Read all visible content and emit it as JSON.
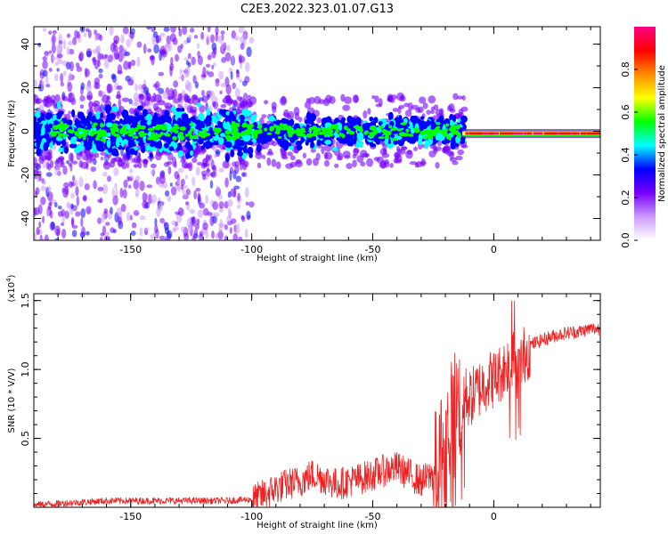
{
  "title": "C2E3.2022.323.01.07.G13",
  "chart_data": [
    {
      "type": "heatmap",
      "xlabel": "Height of straight line (km)",
      "ylabel": "Frequency (Hz)",
      "xlim": [
        -190,
        44
      ],
      "ylim": [
        -50,
        48
      ],
      "xticks": [
        -150,
        -100,
        -50,
        0
      ],
      "yticks": [
        -40,
        -20,
        0,
        20,
        40
      ],
      "colorbar": {
        "label": "Normalized spectral amplitude",
        "range": [
          0,
          1
        ],
        "ticks": [
          "0.0",
          "0.2",
          "0.4",
          "0.6",
          "0.8"
        ],
        "colors": [
          "#ffffff",
          "#cc99ff",
          "#7700ff",
          "#0000ff",
          "#00ffff",
          "#00ff00",
          "#ffff00",
          "#ff8800",
          "#ff0000",
          "#ff0088"
        ]
      },
      "description_of_content": "broad noisy spectrum at negative heights (-190 to -105 km) spread over all frequencies; concentrated band near 0 Hz from -190 to -13 km with blue/cyan/green peaks; narrow strong red line at about -1 Hz from -13 to 44 km"
    },
    {
      "type": "line",
      "xlabel": "Height of straight line (km)",
      "ylabel": "SNR (10 * V/V)",
      "scale_label": "(x10",
      "scale_exp": "4",
      "scale_close": ")",
      "xlim": [
        -190,
        44
      ],
      "ylim": [
        0,
        1.55
      ],
      "xticks": [
        -150,
        -100,
        -50,
        0
      ],
      "yticks": [
        "0.5",
        "1.0",
        "1.5"
      ],
      "ytick_values": [
        0.5,
        1.0,
        1.5
      ],
      "series": [
        {
          "color": "#ee2222",
          "x": [
            -190,
            -180,
            -170,
            -160,
            -150,
            -140,
            -130,
            -120,
            -110,
            -100,
            -95,
            -90,
            -85,
            -80,
            -75,
            -70,
            -65,
            -60,
            -55,
            -50,
            -45,
            -40,
            -35,
            -30,
            -25,
            -22,
            -20,
            -17,
            -15,
            -12,
            -10,
            -8,
            -5,
            -2,
            0,
            3,
            5,
            8,
            10,
            12,
            15,
            20,
            25,
            30,
            35,
            40,
            44
          ],
          "y": [
            0.02,
            0.03,
            0.04,
            0.05,
            0.05,
            0.05,
            0.05,
            0.05,
            0.05,
            0.06,
            0.1,
            0.15,
            0.18,
            0.2,
            0.25,
            0.22,
            0.18,
            0.2,
            0.22,
            0.25,
            0.28,
            0.3,
            0.25,
            0.2,
            0.25,
            0.45,
            0.55,
            0.7,
            0.8,
            0.85,
            0.8,
            0.85,
            0.9,
            0.95,
            0.95,
            1.0,
            1.05,
            1.1,
            1.0,
            1.12,
            1.18,
            1.22,
            1.25,
            1.27,
            1.28,
            1.3,
            1.3
          ]
        }
      ]
    }
  ]
}
